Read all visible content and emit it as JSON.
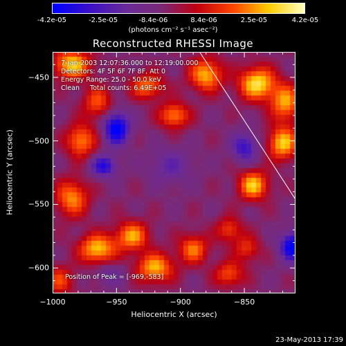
{
  "colorbar": {
    "tick_labels": [
      "-4.2e-05",
      "-2.5e-05",
      "-8.4e-06",
      "8.4e-06",
      "2.5e-05",
      "4.2e-05"
    ],
    "tick_values": [
      -4.2e-05,
      -2.5e-05,
      -8.4e-06,
      8.4e-06,
      2.5e-05,
      4.2e-05
    ],
    "range": [
      -4.2e-05,
      4.2e-05
    ],
    "units_label": "(photons cm⁻² s⁻¹ asec⁻²)",
    "colormap": [
      "#0000ff",
      "#3a10c8",
      "#6a2a9a",
      "#7a2a78",
      "#c00010",
      "#ff4400",
      "#ffcc00",
      "#ffffc0"
    ]
  },
  "chart_data": {
    "type": "heatmap",
    "title": "Reconstructed RHESSI Image",
    "xlabel": "Heliocentric X (arcsec)",
    "ylabel": "Heliocentric Y (arcsec)",
    "xlim": [
      -1000,
      -810
    ],
    "ylim": [
      -620,
      -430
    ],
    "xticks": [
      -1000,
      -950,
      -900,
      -850
    ],
    "xtick_labels": [
      "−1000",
      "−950",
      "−900",
      "−850"
    ],
    "yticks": [
      -450,
      -500,
      -550,
      -600
    ],
    "ytick_labels": [
      "−450",
      "−500",
      "−550",
      "−600"
    ],
    "limb_line": {
      "x": [
        -885,
        -810
      ],
      "y": [
        -430,
        -546
      ]
    },
    "peak": [
      -969,
      -583
    ],
    "sources": [
      {
        "x": -985,
        "y": -440,
        "amp": 0.9,
        "sx": 10,
        "sy": 8
      },
      {
        "x": -965,
        "y": -470,
        "amp": 0.55,
        "sx": 8,
        "sy": 9
      },
      {
        "x": -978,
        "y": -500,
        "amp": 0.7,
        "sx": 8,
        "sy": 9
      },
      {
        "x": -926,
        "y": -457,
        "amp": 0.65,
        "sx": 9,
        "sy": 7
      },
      {
        "x": -905,
        "y": -480,
        "amp": 0.7,
        "sx": 8,
        "sy": 7
      },
      {
        "x": -880,
        "y": -448,
        "amp": 0.8,
        "sx": 9,
        "sy": 9
      },
      {
        "x": -840,
        "y": -455,
        "amp": 0.95,
        "sx": 10,
        "sy": 9
      },
      {
        "x": -818,
        "y": -470,
        "amp": 0.75,
        "sx": 8,
        "sy": 10
      },
      {
        "x": -820,
        "y": -502,
        "amp": 0.85,
        "sx": 8,
        "sy": 9
      },
      {
        "x": -843,
        "y": -535,
        "amp": 0.85,
        "sx": 8,
        "sy": 8
      },
      {
        "x": -862,
        "y": -570,
        "amp": 0.5,
        "sx": 7,
        "sy": 7
      },
      {
        "x": -985,
        "y": -545,
        "amp": 0.7,
        "sx": 9,
        "sy": 10
      },
      {
        "x": -965,
        "y": -585,
        "amp": 0.85,
        "sx": 10,
        "sy": 8
      },
      {
        "x": -938,
        "y": -575,
        "amp": 0.75,
        "sx": 9,
        "sy": 8
      },
      {
        "x": -920,
        "y": -600,
        "amp": 0.8,
        "sx": 10,
        "sy": 8
      },
      {
        "x": -890,
        "y": -585,
        "amp": 0.65,
        "sx": 8,
        "sy": 8
      },
      {
        "x": -862,
        "y": -605,
        "amp": 0.55,
        "sx": 8,
        "sy": 7
      },
      {
        "x": -848,
        "y": -585,
        "amp": 0.45,
        "sx": 7,
        "sy": 7
      },
      {
        "x": -995,
        "y": -610,
        "amp": 0.5,
        "sx": 8,
        "sy": 8
      },
      {
        "x": -950,
        "y": -490,
        "amp": -0.95,
        "sx": 7,
        "sy": 9
      },
      {
        "x": -960,
        "y": -520,
        "amp": -0.7,
        "sx": 7,
        "sy": 6
      },
      {
        "x": -850,
        "y": -505,
        "amp": -0.6,
        "sx": 7,
        "sy": 8
      },
      {
        "x": -812,
        "y": -583,
        "amp": -0.95,
        "sx": 7,
        "sy": 8
      },
      {
        "x": -908,
        "y": -520,
        "amp": -0.35,
        "sx": 12,
        "sy": 10
      },
      {
        "x": -955,
        "y": -605,
        "amp": -0.3,
        "sx": 8,
        "sy": 6
      }
    ]
  },
  "annotations": {
    "time_range": "7-Jan-2003 12:07:36.000 to 12:19:00.000",
    "detectors": "Detectors: 4F 5F 6F 7F 8F, Att 0",
    "energy": "Energy Range: 25.0 - 50.0 keV",
    "clean": "Clean     Total counts: 6.49E+05",
    "peak": "Position of Peak = [-969,-583]"
  },
  "timestamp": "23-May-2013 17:39"
}
